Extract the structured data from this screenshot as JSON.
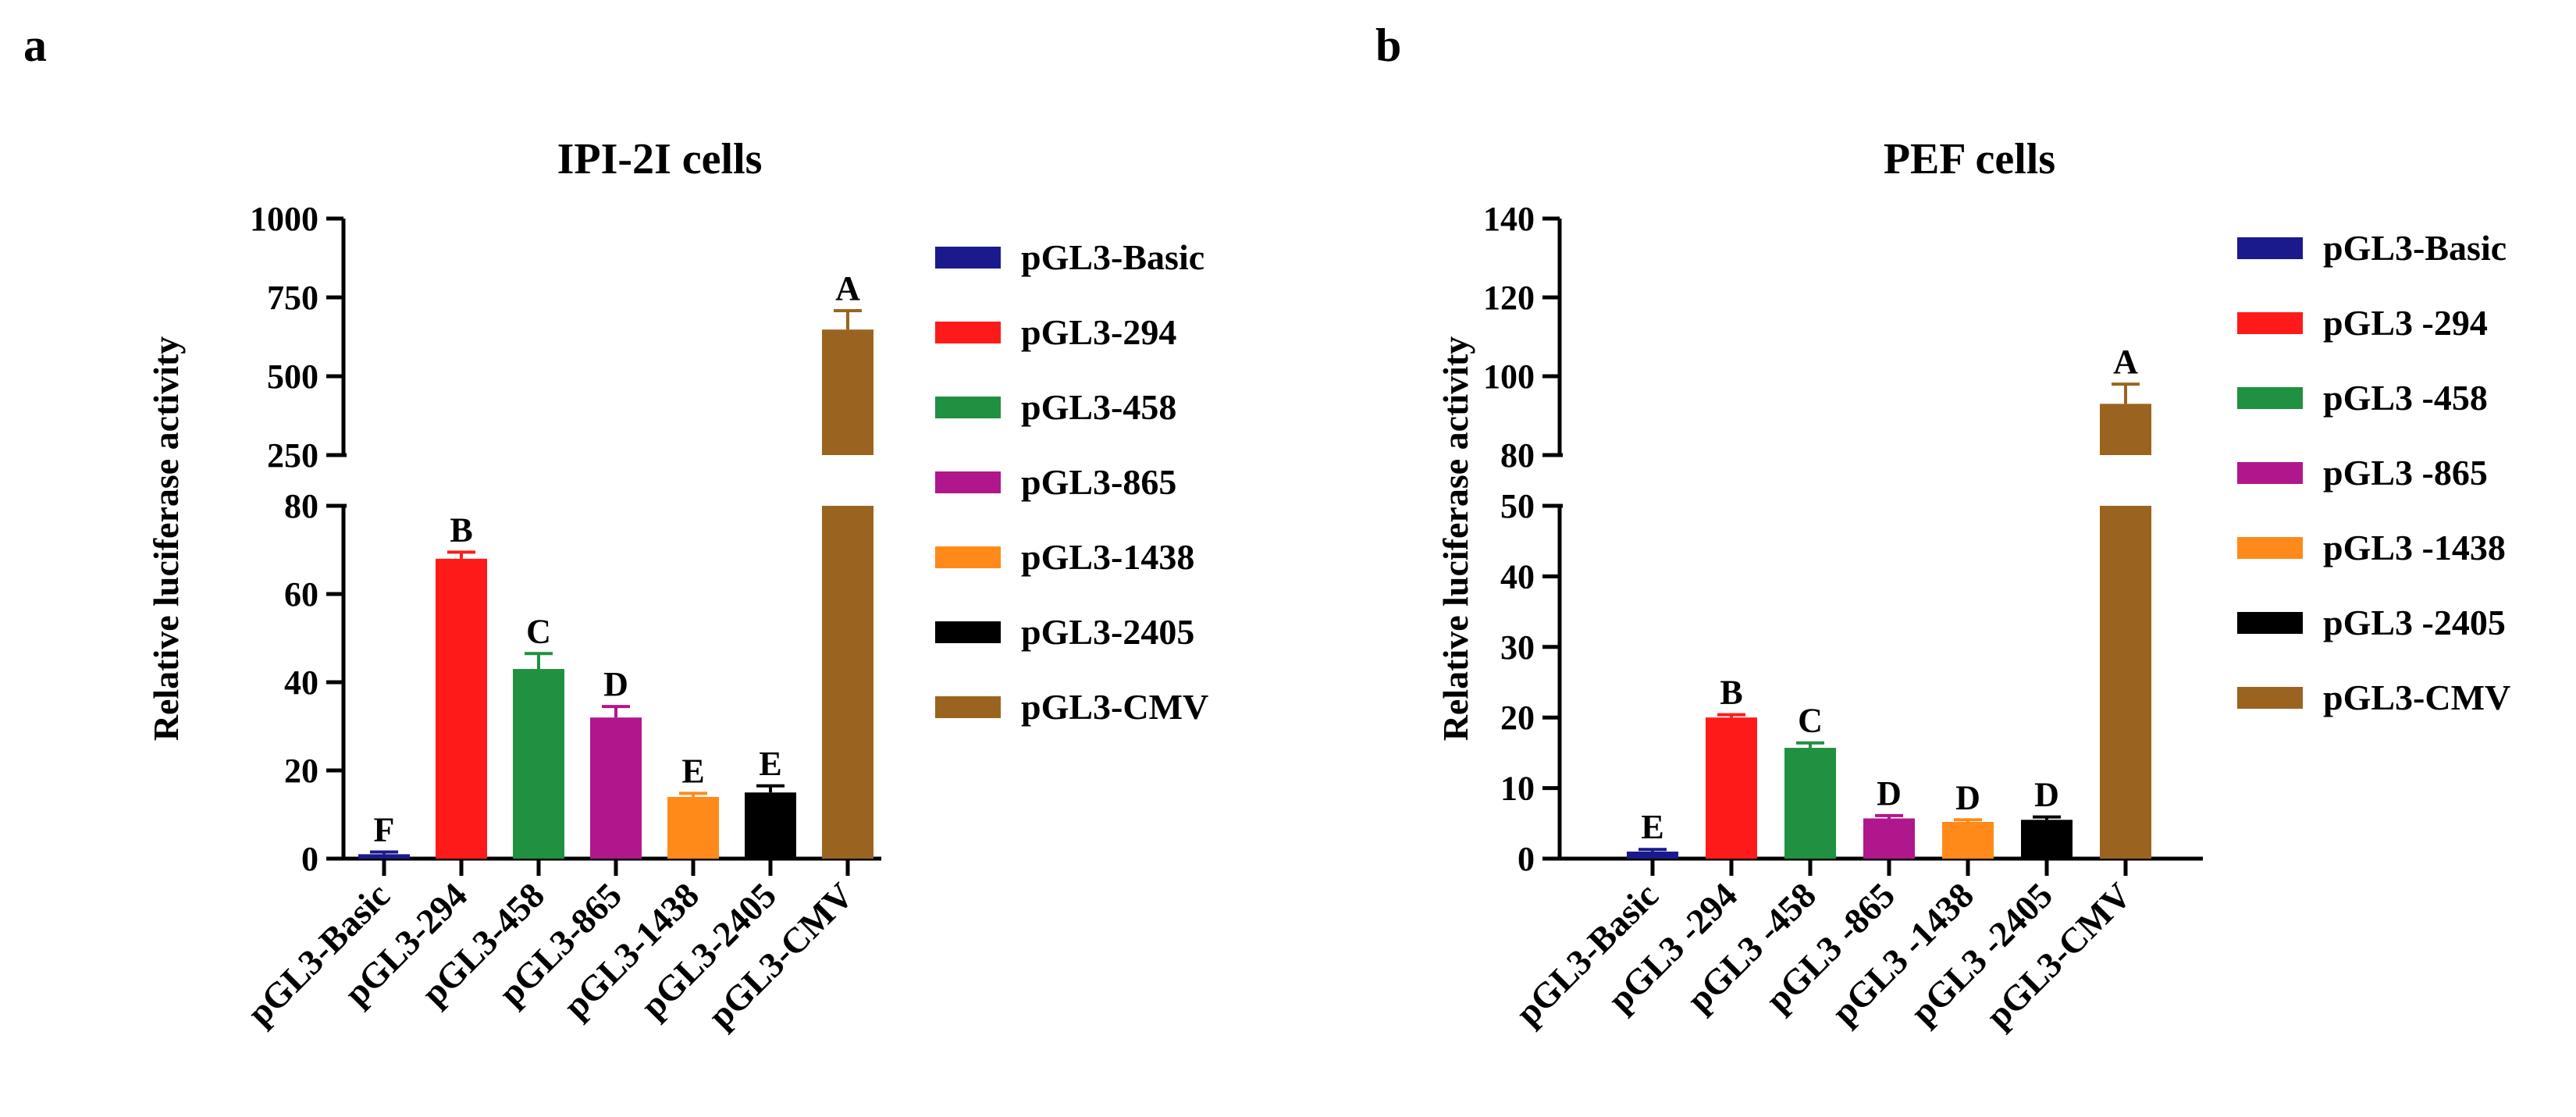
{
  "chart_data": [
    {
      "panel": "a",
      "type": "bar",
      "title": "IPI-2I cells",
      "ylabel": "Relative luciferase activity",
      "xlabel": "",
      "axis_break": true,
      "lower_segment": {
        "ylim": [
          0,
          80
        ],
        "ticks": [
          "0",
          "20",
          "40",
          "60",
          "80"
        ],
        "tick_values": [
          0,
          20,
          40,
          60,
          80
        ]
      },
      "upper_segment": {
        "ylim": [
          250,
          1000
        ],
        "ticks": [
          "250",
          "500",
          "750",
          "1000"
        ],
        "tick_values": [
          250,
          500,
          750,
          1000
        ]
      },
      "categories": [
        "pGL3-Basic",
        "pGL3-294",
        "pGL3-458",
        "pGL3-865",
        "pGL3-1438",
        "pGL3-2405",
        "pGL3-CMV"
      ],
      "values": [
        1,
        68,
        43,
        32,
        14,
        15,
        648
      ],
      "errors": [
        0.5,
        1.5,
        3.5,
        2.5,
        0.8,
        1.5,
        60
      ],
      "significance": [
        "F",
        "B",
        "C",
        "D",
        "E",
        "E",
        "A"
      ],
      "colors": [
        "#1a1a8c",
        "#ff1a1a",
        "#1f9140",
        "#b0178d",
        "#ff8a1a",
        "#000000",
        "#9a6420"
      ],
      "legend": [
        "pGL3-Basic",
        "pGL3-294",
        "pGL3-458",
        "pGL3-865",
        "pGL3-1438",
        "pGL3-2405",
        "pGL3-CMV"
      ],
      "legend_position": "right"
    },
    {
      "panel": "b",
      "type": "bar",
      "title": "PEF cells",
      "ylabel": "Relative luciferase activity",
      "xlabel": "",
      "axis_break": true,
      "lower_segment": {
        "ylim": [
          0,
          50
        ],
        "ticks": [
          "0",
          "10",
          "20",
          "30",
          "40",
          "50"
        ],
        "tick_values": [
          0,
          10,
          20,
          30,
          40,
          50
        ]
      },
      "upper_segment": {
        "ylim": [
          80,
          140
        ],
        "ticks": [
          "80",
          "100",
          "120",
          "140"
        ],
        "tick_values": [
          80,
          100,
          120,
          140
        ]
      },
      "categories": [
        "pGL3-Basic",
        "pGL3 -294",
        "pGL3 -458",
        "pGL3 -865",
        "pGL3 -1438",
        "pGL3 -2405",
        "pGL3-CMV"
      ],
      "values": [
        1,
        20,
        15.7,
        5.7,
        5.2,
        5.5,
        93
      ],
      "errors": [
        0.3,
        0.4,
        0.7,
        0.4,
        0.3,
        0.4,
        5
      ],
      "significance": [
        "E",
        "B",
        "C",
        "D",
        "D",
        "D",
        "A"
      ],
      "colors": [
        "#1a1a8c",
        "#ff1a1a",
        "#1f9140",
        "#b0178d",
        "#ff8a1a",
        "#000000",
        "#9a6420"
      ],
      "legend": [
        "pGL3-Basic",
        "pGL3 -294",
        "pGL3 -458",
        "pGL3 -865",
        "pGL3 -1438",
        "pGL3 -2405",
        "pGL3-CMV"
      ],
      "legend_position": "right"
    }
  ]
}
